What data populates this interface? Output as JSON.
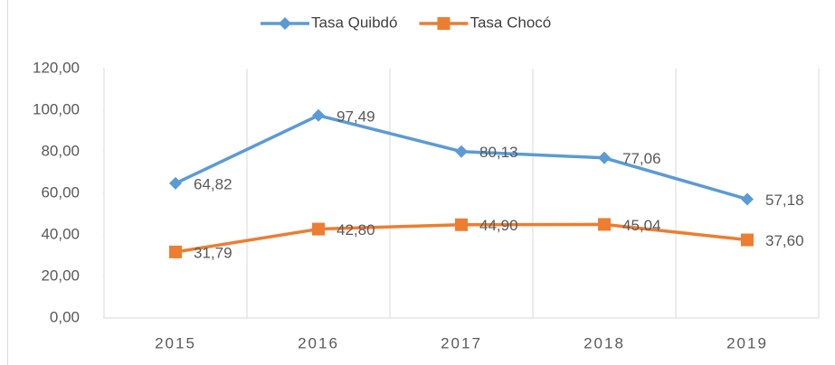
{
  "chart_data": {
    "type": "line",
    "categories": [
      "2015",
      "2016",
      "2017",
      "2018",
      "2019"
    ],
    "series": [
      {
        "name": "Tasa Quibdó",
        "color": "#5b9bd5",
        "marker": "diamond",
        "values": [
          64.82,
          97.49,
          80.13,
          77.06,
          57.18
        ],
        "value_labels": [
          "64,82",
          "97,49",
          "80,13",
          "77,06",
          "57,18"
        ]
      },
      {
        "name": "Tasa Chocó",
        "color": "#ed7d31",
        "marker": "square",
        "values": [
          31.79,
          42.8,
          44.9,
          45.04,
          37.6
        ],
        "value_labels": [
          "31,79",
          "42,80",
          "44,90",
          "45,04",
          "37,60"
        ]
      }
    ],
    "ylim": [
      0,
      120
    ],
    "yticks": [
      {
        "value": 0,
        "label": "0,00"
      },
      {
        "value": 20,
        "label": "20,00"
      },
      {
        "value": 40,
        "label": "40,00"
      },
      {
        "value": 60,
        "label": "60,00"
      },
      {
        "value": 80,
        "label": "80,00"
      },
      {
        "value": 100,
        "label": "100,00"
      },
      {
        "value": 120,
        "label": "120,00"
      }
    ],
    "legend": "top",
    "grid": false
  }
}
